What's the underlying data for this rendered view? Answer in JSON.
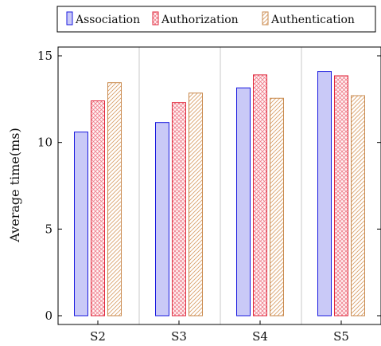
{
  "chart_data": {
    "type": "bar",
    "categories": [
      "S2",
      "S3",
      "S4",
      "S5"
    ],
    "series": [
      {
        "name": "Association",
        "values": [
          10.6,
          11.15,
          13.15,
          14.1
        ],
        "stroke": "#1a1adf",
        "fill": "#c9c9f7",
        "pattern": "solid"
      },
      {
        "name": "Authorization",
        "values": [
          12.4,
          12.3,
          13.9,
          13.85
        ],
        "stroke": "#e0283c",
        "fill": "#fde4e6",
        "pattern": "crosshatch"
      },
      {
        "name": "Authentication",
        "values": [
          13.45,
          12.85,
          12.55,
          12.7
        ],
        "stroke": "#c98a4e",
        "fill": "#ffffff",
        "pattern": "diagonal"
      }
    ],
    "ylabel": "Average time(ms)",
    "xlabel": "",
    "ylim": [
      0,
      15
    ],
    "yticks": [
      0,
      5,
      10,
      15
    ],
    "grid": "vertical",
    "legend": "top"
  }
}
